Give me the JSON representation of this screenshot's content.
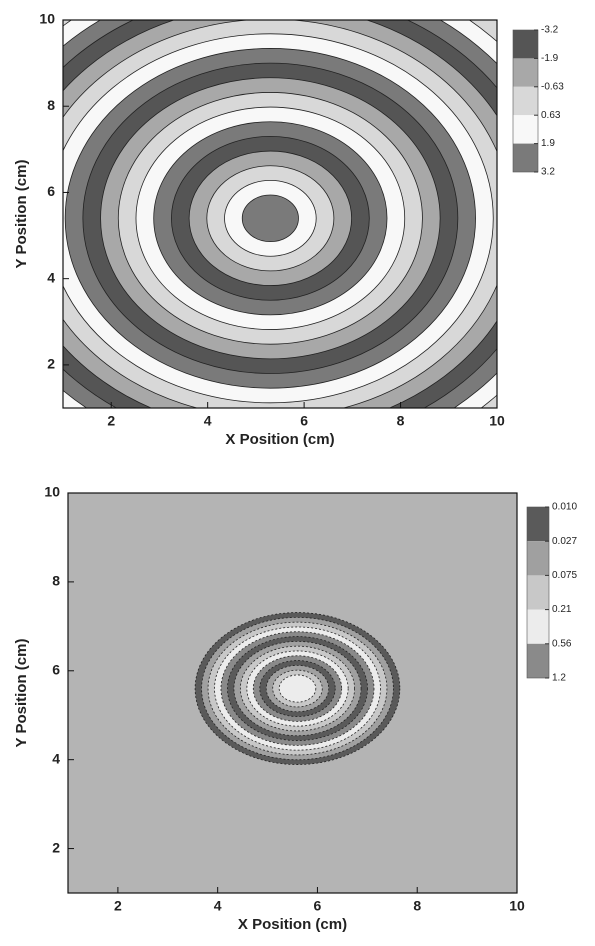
{
  "chart_data": [
    {
      "type": "contour",
      "xlabel": "X Position (cm)",
      "ylabel": "Y Position (cm)",
      "xlim": [
        1,
        10
      ],
      "ylim": [
        1,
        10
      ],
      "xticks": [
        2,
        4,
        6,
        8,
        10
      ],
      "yticks": [
        2,
        4,
        6,
        8,
        10
      ],
      "colorbar": {
        "levels": [
          -3.2,
          -1.9,
          -0.63,
          0.63,
          1.9,
          3.2
        ],
        "colors": [
          "#555555",
          "#a8a8a8",
          "#d8d8d8",
          "#f8f8f8",
          "#7a7a7a"
        ]
      }
    },
    {
      "type": "contour",
      "xlabel": "X Position (cm)",
      "ylabel": "Y Position (cm)",
      "xlim": [
        1,
        10
      ],
      "ylim": [
        1,
        10
      ],
      "xticks": [
        2,
        4,
        6,
        8,
        10
      ],
      "yticks": [
        2,
        4,
        6,
        8,
        10
      ],
      "colorbar": {
        "levels": [
          {
            "value": 0.01,
            "label": "0.010"
          },
          0.027,
          0.075,
          0.21,
          0.56,
          1.2
        ],
        "colors": [
          "#5a5a5a",
          "#a0a0a0",
          "#c8c8c8",
          "#ececec",
          "#8a8a8a"
        ]
      }
    }
  ]
}
